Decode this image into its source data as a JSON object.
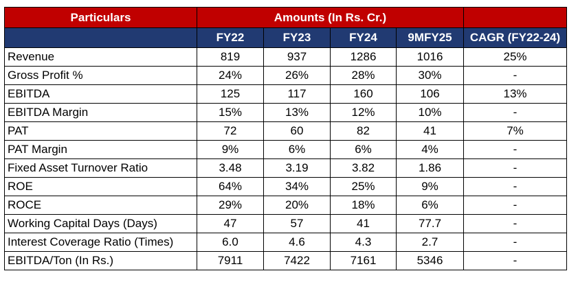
{
  "header": {
    "particulars": "Particulars",
    "amounts": "Amounts (In Rs. Cr.)",
    "columns": [
      "FY22",
      "FY23",
      "FY24",
      "9MFY25",
      "CAGR (FY22-24)"
    ]
  },
  "colors": {
    "header_red": "#c00000",
    "header_blue": "#213a72"
  },
  "rows": [
    {
      "label": "Revenue",
      "values": [
        "819",
        "937",
        "1286",
        "1016",
        "25%"
      ]
    },
    {
      "label": "Gross Profit %",
      "values": [
        "24%",
        "26%",
        "28%",
        "30%",
        "-"
      ]
    },
    {
      "label": "EBITDA",
      "values": [
        "125",
        "117",
        "160",
        "106",
        "13%"
      ]
    },
    {
      "label": "EBITDA Margin",
      "values": [
        "15%",
        "13%",
        "12%",
        "10%",
        "-"
      ]
    },
    {
      "label": "PAT",
      "values": [
        "72",
        "60",
        "82",
        "41",
        "7%"
      ]
    },
    {
      "label": "PAT Margin",
      "values": [
        "9%",
        "6%",
        "6%",
        "4%",
        "-"
      ]
    },
    {
      "label": "Fixed Asset Turnover Ratio",
      "values": [
        "3.48",
        "3.19",
        "3.82",
        "1.86",
        "-"
      ]
    },
    {
      "label": "ROE",
      "values": [
        "64%",
        "34%",
        "25%",
        "9%",
        "-"
      ]
    },
    {
      "label": "ROCE",
      "values": [
        "29%",
        "20%",
        "18%",
        "6%",
        "-"
      ]
    },
    {
      "label": "Working Capital Days (Days)",
      "values": [
        "47",
        "57",
        "41",
        "77.7",
        "-"
      ]
    },
    {
      "label": "Interest Coverage Ratio (Times)",
      "values": [
        "6.0",
        "4.6",
        "4.3",
        "2.7",
        "-"
      ]
    },
    {
      "label": "EBITDA/Ton (In Rs.)",
      "values": [
        "7911",
        "7422",
        "7161",
        "5346",
        "-"
      ]
    }
  ]
}
